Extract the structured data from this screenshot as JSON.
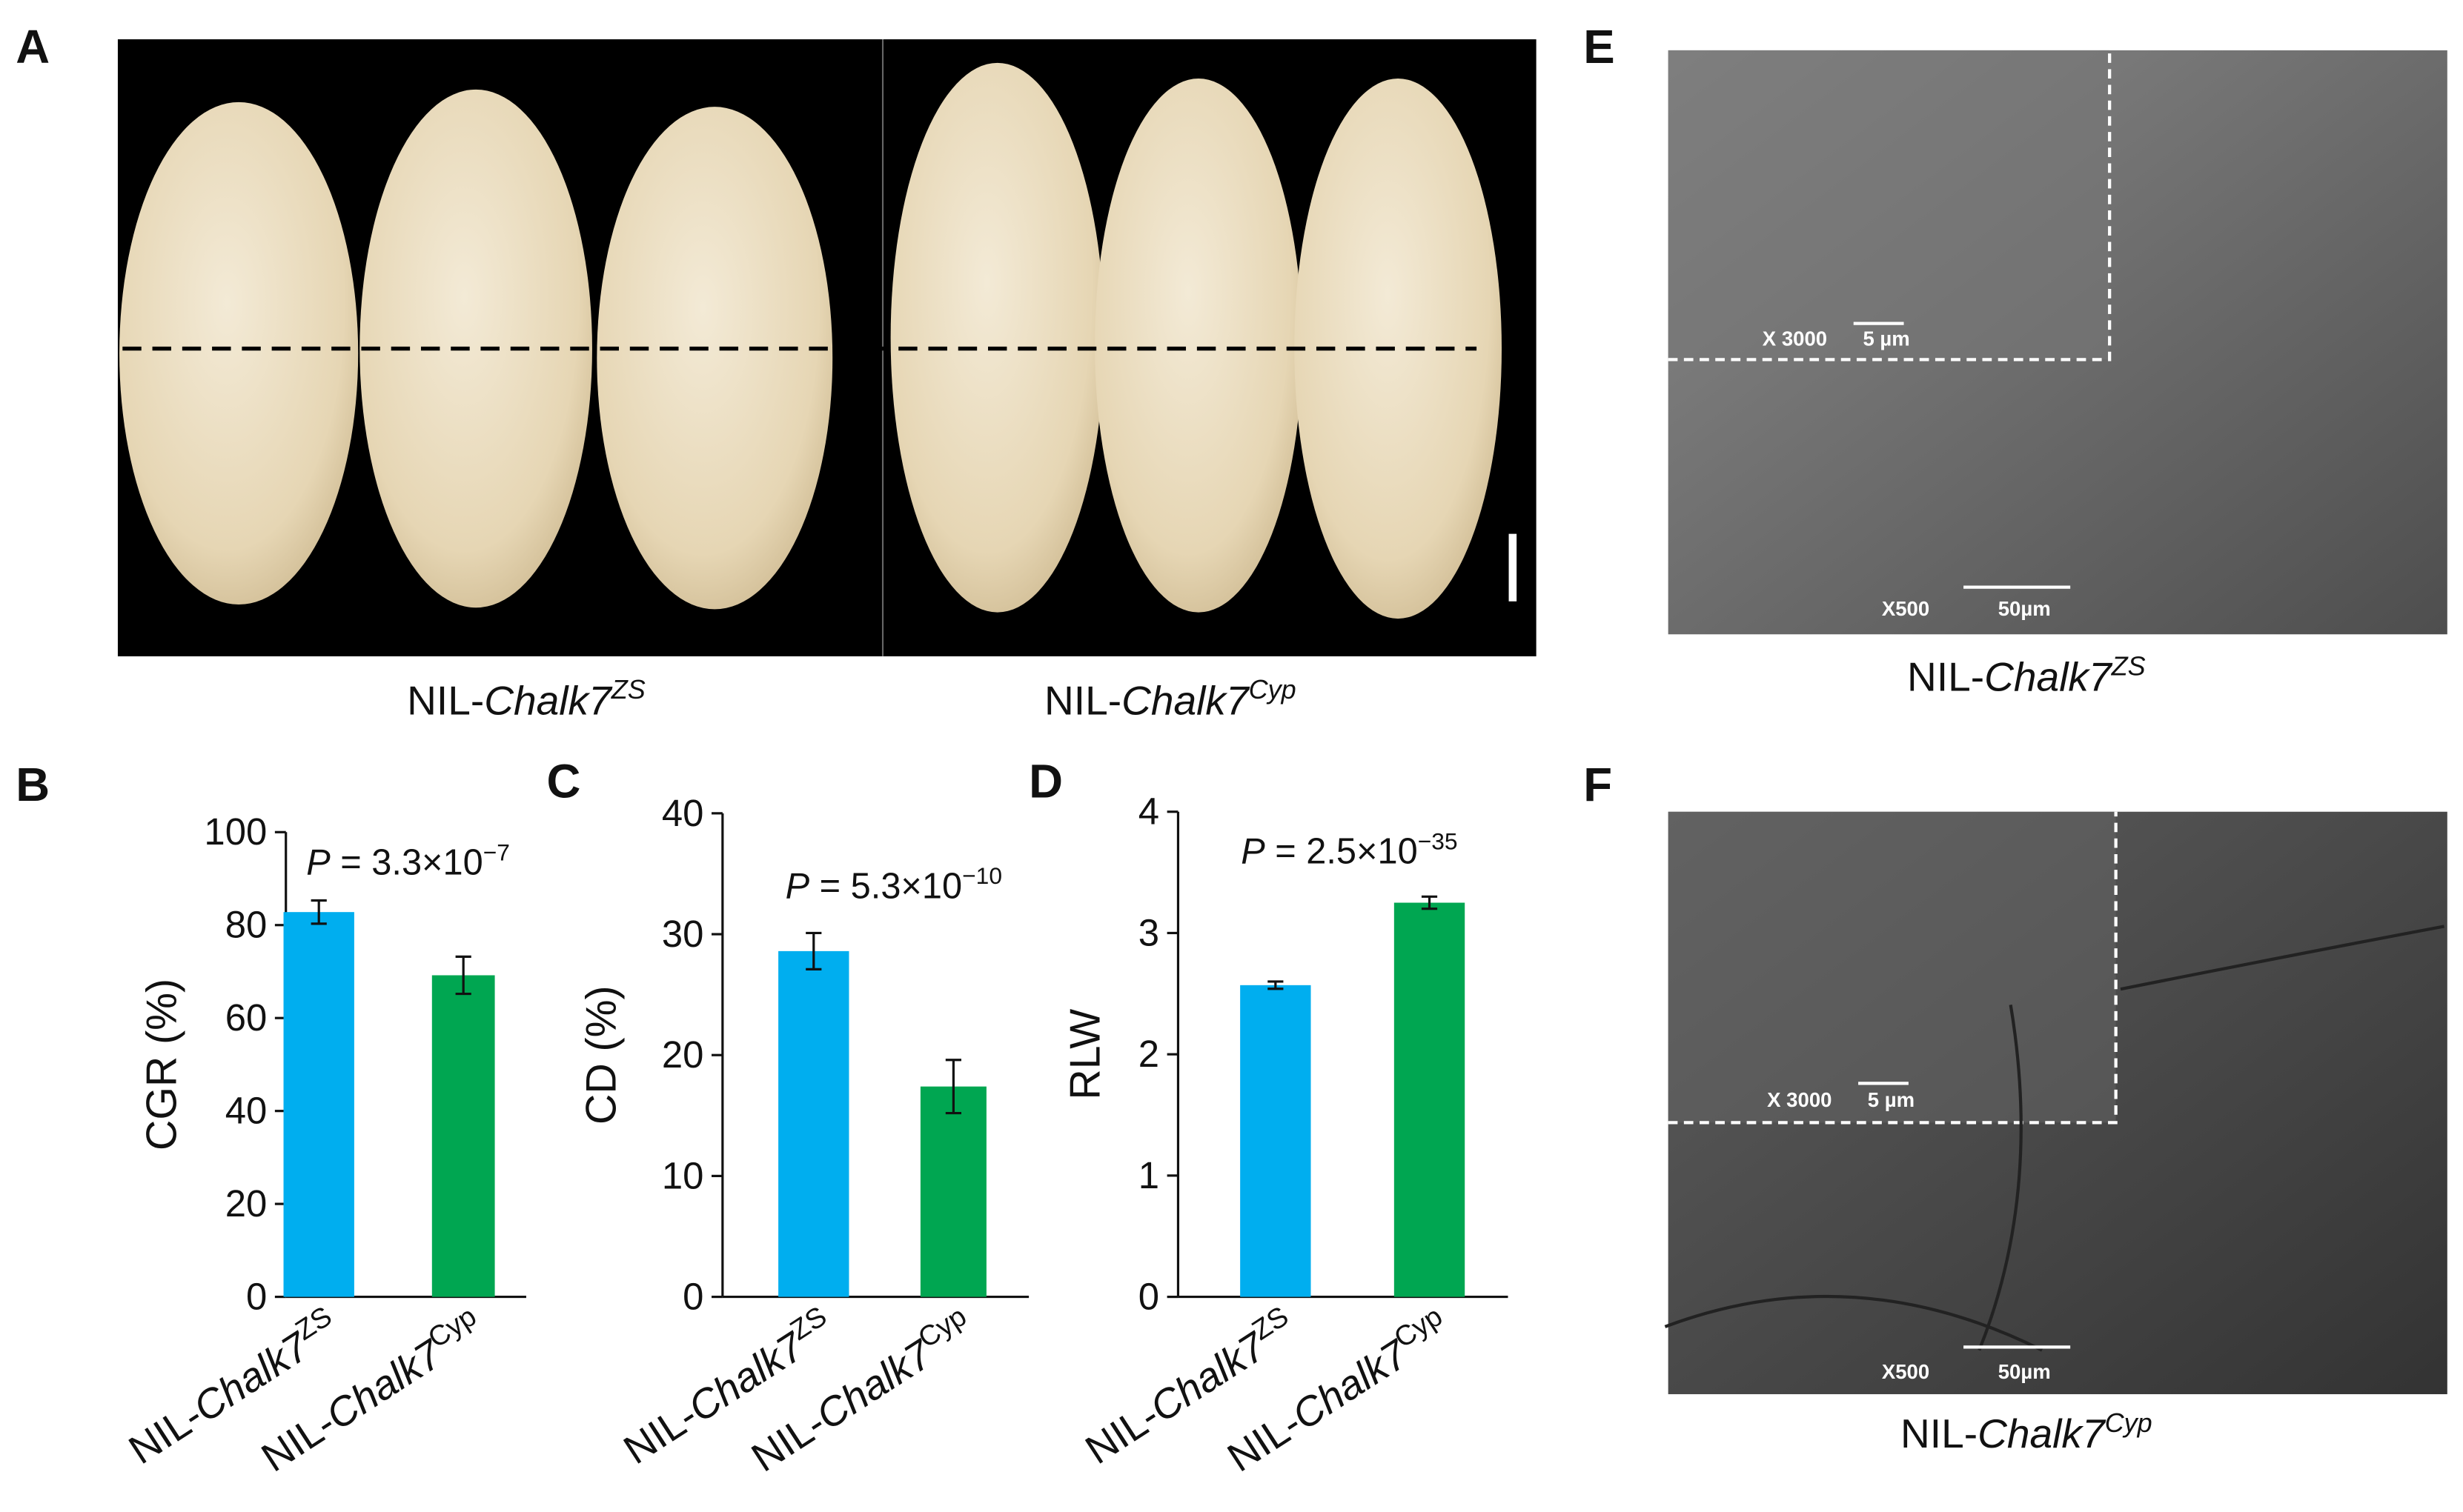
{
  "photo": {
    "label": "A",
    "captions": [
      {
        "prefix": "NIL-",
        "gene": "Chalk7",
        "allele": "ZS"
      },
      {
        "prefix": "NIL-",
        "gene": "Chalk7",
        "allele": "Cyp"
      }
    ]
  },
  "chart_data": [
    {
      "type": "bar",
      "panel": "B",
      "y_label": "CGR (%)",
      "categories": [
        {
          "prefix": "NIL-",
          "gene": "Chalk7",
          "allele": "ZS"
        },
        {
          "prefix": "NIL-",
          "gene": "Chalk7",
          "allele": "Cyp"
        }
      ],
      "values": [
        82.8,
        69.2
      ],
      "errors": [
        2.5,
        4.0
      ],
      "colors": [
        "#00aeef",
        "#00a651"
      ],
      "ylim": [
        0,
        100
      ],
      "yticks": [
        0,
        20,
        40,
        60,
        80,
        100
      ],
      "annotation": {
        "italic": "P",
        "text": " = 3.3×10",
        "superscript": "−7"
      }
    },
    {
      "type": "bar",
      "panel": "C",
      "y_label": "CD (%)",
      "categories": [
        {
          "prefix": "NIL-",
          "gene": "Chalk7",
          "allele": "ZS"
        },
        {
          "prefix": "NIL-",
          "gene": "Chalk7",
          "allele": "Cyp"
        }
      ],
      "values": [
        28.6,
        17.4
      ],
      "errors": [
        1.5,
        2.2
      ],
      "colors": [
        "#00aeef",
        "#00a651"
      ],
      "ylim": [
        0,
        40
      ],
      "yticks": [
        0,
        10,
        20,
        30,
        40
      ],
      "annotation": {
        "italic": "P",
        "text": " = 5.3×10",
        "superscript": "−10"
      }
    },
    {
      "type": "bar",
      "panel": "D",
      "y_label": "RLW",
      "categories": [
        {
          "prefix": "NIL-",
          "gene": "Chalk7",
          "allele": "ZS"
        },
        {
          "prefix": "NIL-",
          "gene": "Chalk7",
          "allele": "Cyp"
        }
      ],
      "values": [
        2.57,
        3.25
      ],
      "errors": [
        0.03,
        0.05
      ],
      "colors": [
        "#00aeef",
        "#00a651"
      ],
      "ylim": [
        0,
        4
      ],
      "yticks": [
        0,
        1,
        2,
        3,
        4
      ],
      "annotation": {
        "italic": "P",
        "text": " = 2.5×10",
        "superscript": "−35"
      }
    }
  ],
  "sem": [
    {
      "label": "E",
      "inset_magnification": "X 3000",
      "inset_scale": "5 µm",
      "magnification": "X500",
      "scale": "50µm",
      "caption": {
        "prefix": "NIL-",
        "gene": "Chalk7",
        "allele": "ZS"
      }
    },
    {
      "label": "F",
      "inset_magnification": "X 3000",
      "inset_scale": "5 µm",
      "magnification": "X500",
      "scale": "50µm",
      "caption": {
        "prefix": "NIL-",
        "gene": "Chalk7",
        "allele": "Cyp"
      }
    }
  ]
}
